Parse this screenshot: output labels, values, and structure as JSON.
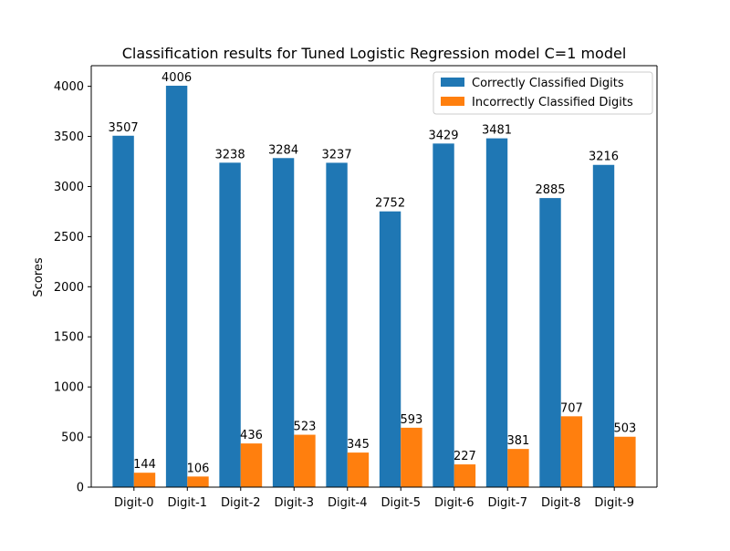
{
  "chart_data": {
    "type": "bar",
    "title": "Classification results for Tuned Logistic Regression model C=1 model",
    "xlabel": "",
    "ylabel": "Scores",
    "categories": [
      "Digit-0",
      "Digit-1",
      "Digit-2",
      "Digit-3",
      "Digit-4",
      "Digit-5",
      "Digit-6",
      "Digit-7",
      "Digit-8",
      "Digit-9"
    ],
    "series": [
      {
        "name": "Correctly Classified Digits",
        "color": "#1f77b4",
        "values": [
          3507,
          4006,
          3238,
          3284,
          3237,
          2752,
          3429,
          3481,
          2885,
          3216
        ]
      },
      {
        "name": "Incorrectly Classified Digits",
        "color": "#ff7f0e",
        "values": [
          144,
          106,
          436,
          523,
          345,
          593,
          227,
          381,
          707,
          503
        ]
      }
    ],
    "ylim": [
      0,
      4206
    ],
    "yticks": [
      0,
      500,
      1000,
      1500,
      2000,
      2500,
      3000,
      3500,
      4000
    ],
    "grid": false,
    "legend_position": "top-right",
    "data_labels": true
  }
}
